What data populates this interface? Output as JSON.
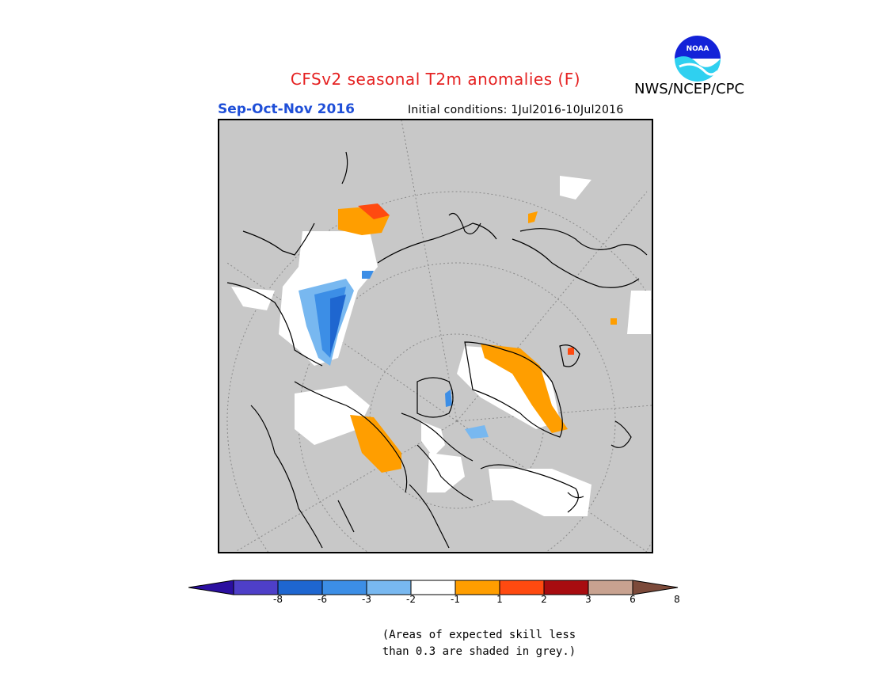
{
  "header": {
    "title": "CFSv2 seasonal T2m anomalies (F)",
    "agency": "NWS/NCEP/CPC",
    "logo_text": "NOAA",
    "season": "Sep-Oct-Nov 2016",
    "initial_conditions": "Initial conditions: 1Jul2016-10Jul2016"
  },
  "colors": {
    "title": "#e52121",
    "season": "#1f4fd8",
    "skill_grey": "#c8c8c8",
    "land_outline": "#000000"
  },
  "legend": {
    "bins": [
      {
        "color": "#2b0fa0"
      },
      {
        "color": "#4e3fc8"
      },
      {
        "color": "#1e66d0"
      },
      {
        "color": "#3c8ee6"
      },
      {
        "color": "#78b8f0"
      },
      {
        "color": "#ffffff"
      },
      {
        "color": "#ff9e00"
      },
      {
        "color": "#ff4a10"
      },
      {
        "color": "#a80c10"
      },
      {
        "color": "#c8a290"
      },
      {
        "color": "#7c4a3a"
      }
    ],
    "tick_labels": [
      "-8",
      "-6",
      "-3",
      "-2",
      "-1",
      "1",
      "2",
      "3",
      "6",
      "8"
    ]
  },
  "note": {
    "line1": "(Areas of expected skill less",
    "line2": "than 0.3 are shaded in grey.)"
  }
}
